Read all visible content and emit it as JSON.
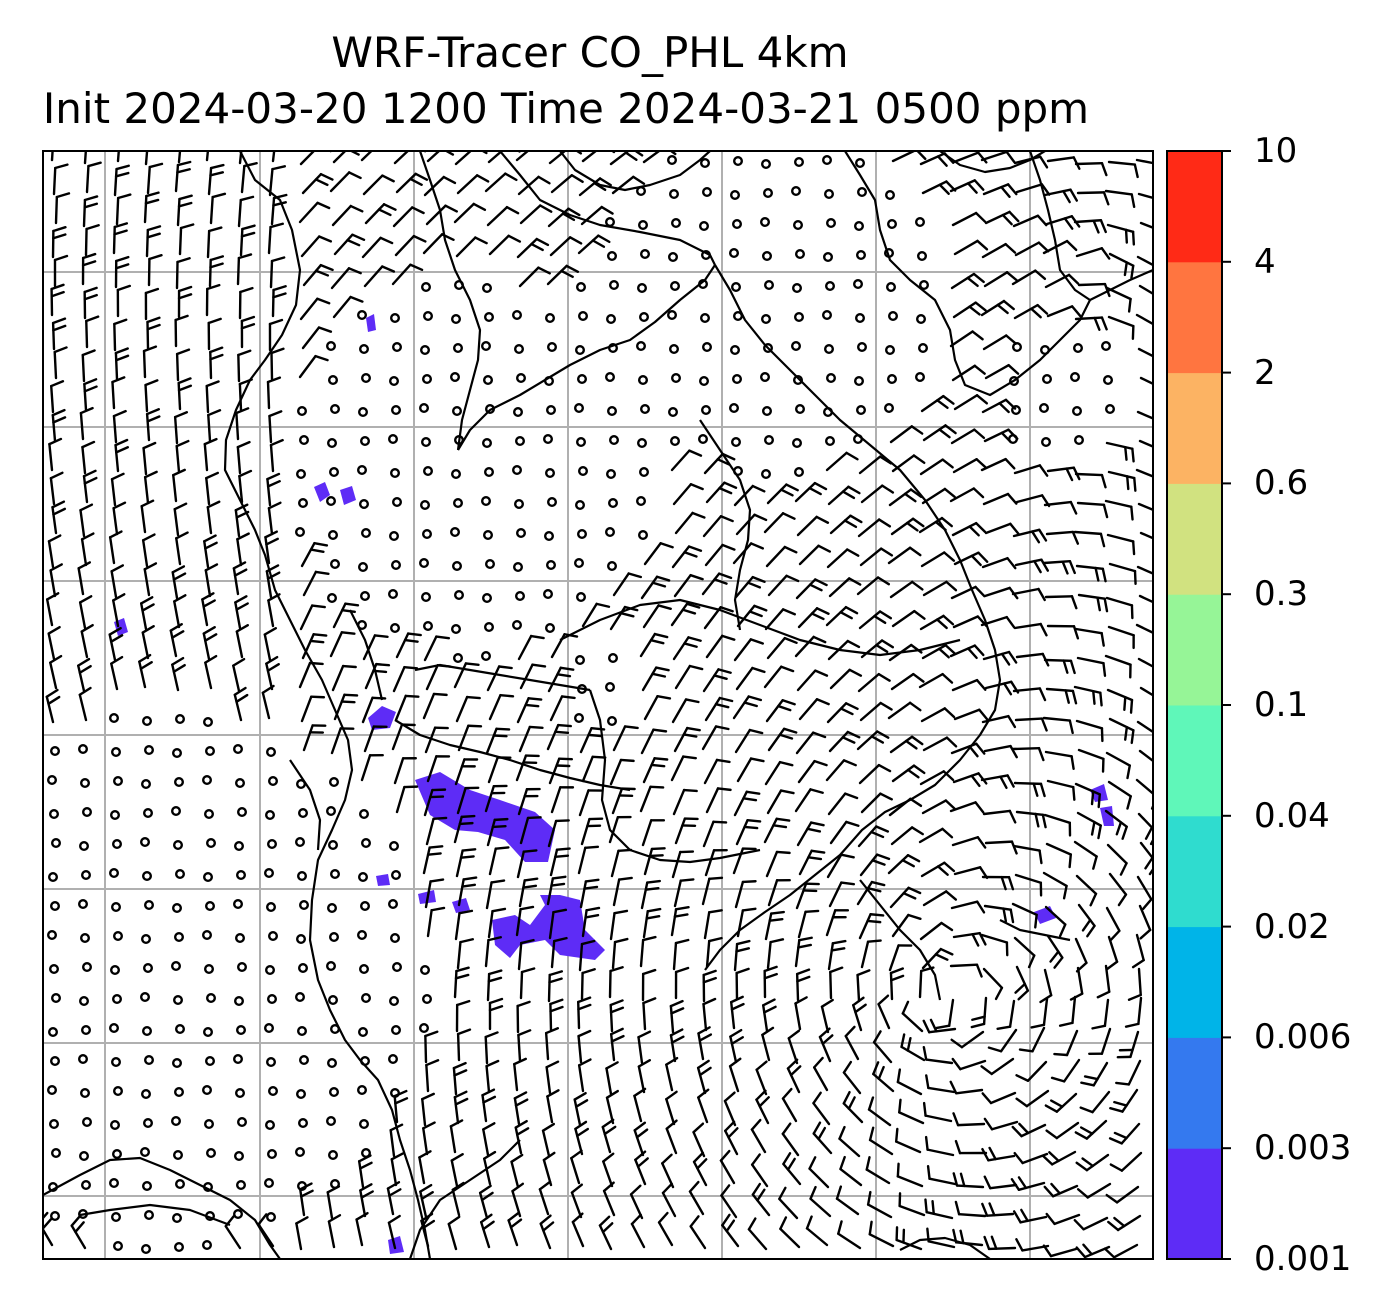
{
  "title": {
    "line1": "WRF-Tracer CO_PHL 4km",
    "line2": "Init 2024-03-20 1200 Time 2024-03-21 0500 ppm"
  },
  "colorbar": {
    "levels": [
      "0.001",
      "0.003",
      "0.006",
      "0.02",
      "0.04",
      "0.1",
      "0.3",
      "0.6",
      "2",
      "4",
      "10"
    ],
    "colors": [
      "#5e2cf6",
      "#3479ef",
      "#00b4e8",
      "#2fdccf",
      "#5ff7b9",
      "#96f597",
      "#d1e280",
      "#fcb363",
      "#ff7540",
      "#ff2a16"
    ]
  },
  "map": {
    "gridlines": true,
    "wind_barbs": true,
    "tracer_color": "#5e2cf6",
    "coastline_color": "#000000",
    "grid_color": "#b0b0b0"
  }
}
